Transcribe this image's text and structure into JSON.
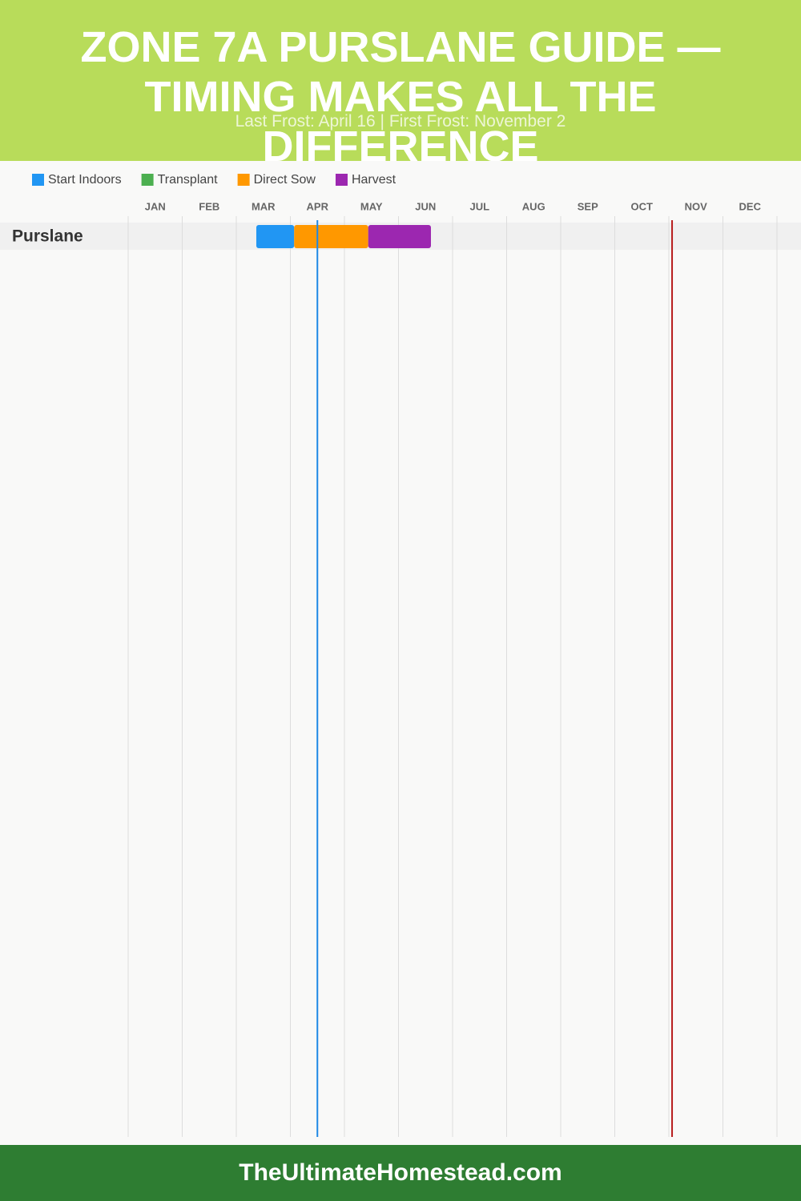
{
  "chart_data": {
    "type": "gantt",
    "title": "Zone 7A Purslane Guide — Timing Makes All the Difference",
    "subtitle": "Last Frost: April 16 | First Frost: November 2",
    "months": [
      "JAN",
      "FEB",
      "MAR",
      "APR",
      "MAY",
      "JUN",
      "JUL",
      "AUG",
      "SEP",
      "OCT",
      "NOV",
      "DEC"
    ],
    "xlim": [
      0,
      12
    ],
    "rows": [
      "Purslane"
    ],
    "series": [
      {
        "name": "Start Indoors",
        "color": "#2196f3",
        "start": [
          2.37
        ],
        "end": [
          3.07
        ]
      },
      {
        "name": "Transplant",
        "color": "#4caf50",
        "start": [
          null
        ],
        "end": [
          null
        ]
      },
      {
        "name": "Direct Sow",
        "color": "#ff9800",
        "start": [
          3.07
        ],
        "end": [
          4.44
        ]
      },
      {
        "name": "Harvest",
        "color": "#9c27b0",
        "start": [
          4.44
        ],
        "end": [
          5.6
        ]
      }
    ],
    "markers": [
      {
        "value": 3.5,
        "color": "#1e88e5"
      },
      {
        "value": 10.06,
        "color": "#b71c1c"
      }
    ],
    "grid": true
  },
  "footer": "TheUltimateHomestead.com"
}
